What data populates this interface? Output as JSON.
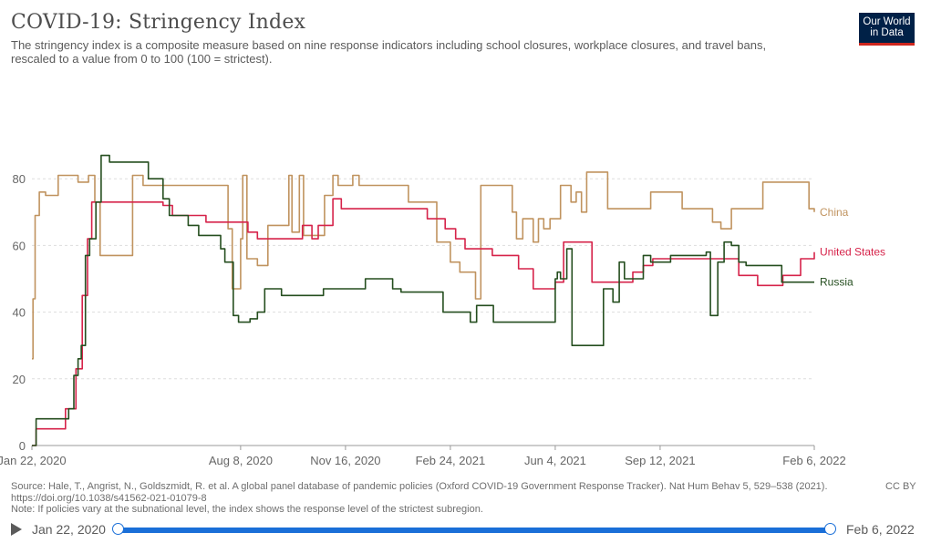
{
  "header": {
    "title": "COVID-19: Stringency Index",
    "subtitle": "The stringency index is a composite measure based on nine response indicators including school closures, workplace closures, and travel bans, rescaled to a value from 0 to 100 (100 = strictest).",
    "logo_line1": "Our World",
    "logo_line2": "in Data"
  },
  "footer": {
    "source": "Source: Hale, T., Angrist, N., Goldszmidt, R. et al. A global panel database of pandemic policies (Oxford COVID-19 Government Response Tracker). Nat Hum Behav 5, 529–538 (2021).",
    "doi": "https://doi.org/10.1038/s41562-021-01079-8",
    "note": "Note: If policies vary at the subnational level, the index shows the response level of the strictest subregion.",
    "license": "CC BY"
  },
  "timeline": {
    "start_label": "Jan 22, 2020",
    "end_label": "Feb 6, 2022"
  },
  "colors": {
    "china": "#c0935f",
    "united_states": "#d6234a",
    "russia": "#254e1f",
    "grid": "#dddddd",
    "axis_text": "#666666"
  },
  "chart_data": {
    "type": "line",
    "ylim": [
      0,
      100
    ],
    "yticks": [
      0,
      20,
      40,
      60,
      80
    ],
    "xlim": [
      "2020-01-22",
      "2022-02-06"
    ],
    "xticks": [
      {
        "date": "2020-01-22",
        "label": "Jan 22, 2020"
      },
      {
        "date": "2020-08-08",
        "label": "Aug 8, 2020"
      },
      {
        "date": "2020-11-16",
        "label": "Nov 16, 2020"
      },
      {
        "date": "2021-02-24",
        "label": "Feb 24, 2021"
      },
      {
        "date": "2021-06-04",
        "label": "Jun 4, 2021"
      },
      {
        "date": "2021-09-12",
        "label": "Sep 12, 2021"
      },
      {
        "date": "2022-02-06",
        "label": "Feb 6, 2022"
      }
    ],
    "series": [
      {
        "name": "China",
        "color": "#c0935f",
        "points": [
          [
            "2020-01-22",
            26
          ],
          [
            "2020-01-23",
            44
          ],
          [
            "2020-01-25",
            69
          ],
          [
            "2020-01-29",
            76
          ],
          [
            "2020-02-04",
            75
          ],
          [
            "2020-02-16",
            81
          ],
          [
            "2020-03-06",
            79
          ],
          [
            "2020-03-16",
            81
          ],
          [
            "2020-03-22",
            73
          ],
          [
            "2020-03-27",
            57
          ],
          [
            "2020-04-27",
            81
          ],
          [
            "2020-05-07",
            78
          ],
          [
            "2020-07-27",
            65
          ],
          [
            "2020-07-31",
            47
          ],
          [
            "2020-08-08",
            62
          ],
          [
            "2020-08-10",
            81
          ],
          [
            "2020-08-14",
            56
          ],
          [
            "2020-08-24",
            54
          ],
          [
            "2020-09-03",
            66
          ],
          [
            "2020-09-23",
            81
          ],
          [
            "2020-09-26",
            64
          ],
          [
            "2020-10-03",
            81
          ],
          [
            "2020-10-07",
            63
          ],
          [
            "2020-10-27",
            75
          ],
          [
            "2020-11-04",
            81
          ],
          [
            "2020-11-09",
            78
          ],
          [
            "2020-11-23",
            81
          ],
          [
            "2020-11-29",
            78
          ],
          [
            "2021-01-15",
            73
          ],
          [
            "2021-01-21",
            73
          ],
          [
            "2021-02-11",
            61
          ],
          [
            "2021-02-24",
            55
          ],
          [
            "2021-03-05",
            52
          ],
          [
            "2021-03-20",
            44
          ],
          [
            "2021-03-25",
            78
          ],
          [
            "2021-04-24",
            70
          ],
          [
            "2021-04-28",
            62
          ],
          [
            "2021-05-04",
            68
          ],
          [
            "2021-05-14",
            61
          ],
          [
            "2021-05-19",
            68
          ],
          [
            "2021-05-24",
            65
          ],
          [
            "2021-05-30",
            68
          ],
          [
            "2021-06-09",
            78
          ],
          [
            "2021-06-19",
            73
          ],
          [
            "2021-06-24",
            76
          ],
          [
            "2021-06-29",
            70
          ],
          [
            "2021-07-04",
            82
          ],
          [
            "2021-07-24",
            71
          ],
          [
            "2021-09-03",
            76
          ],
          [
            "2021-10-03",
            71
          ],
          [
            "2021-11-01",
            67
          ],
          [
            "2021-11-09",
            65
          ],
          [
            "2021-11-19",
            71
          ],
          [
            "2021-12-19",
            79
          ],
          [
            "2022-02-01",
            71
          ],
          [
            "2022-02-06",
            70
          ]
        ]
      },
      {
        "name": "United States",
        "color": "#d6234a",
        "points": [
          [
            "2020-01-22",
            0
          ],
          [
            "2020-01-26",
            5
          ],
          [
            "2020-02-23",
            11
          ],
          [
            "2020-03-04",
            23
          ],
          [
            "2020-03-10",
            45
          ],
          [
            "2020-03-15",
            62
          ],
          [
            "2020-03-19",
            73
          ],
          [
            "2020-05-26",
            72
          ],
          [
            "2020-06-04",
            69
          ],
          [
            "2020-07-06",
            67
          ],
          [
            "2020-08-15",
            64
          ],
          [
            "2020-08-24",
            62
          ],
          [
            "2020-10-06",
            66
          ],
          [
            "2020-10-15",
            62
          ],
          [
            "2020-10-21",
            66
          ],
          [
            "2020-11-04",
            74
          ],
          [
            "2020-11-12",
            71
          ],
          [
            "2020-12-31",
            71
          ],
          [
            "2021-01-29",
            71
          ],
          [
            "2021-02-02",
            68
          ],
          [
            "2021-02-19",
            65
          ],
          [
            "2021-03-01",
            62
          ],
          [
            "2021-03-10",
            59
          ],
          [
            "2021-04-05",
            57
          ],
          [
            "2021-04-30",
            53
          ],
          [
            "2021-05-14",
            47
          ],
          [
            "2021-06-04",
            49
          ],
          [
            "2021-06-12",
            61
          ],
          [
            "2021-07-09",
            49
          ],
          [
            "2021-08-17",
            52
          ],
          [
            "2021-08-27",
            54
          ],
          [
            "2021-09-05",
            56
          ],
          [
            "2021-11-26",
            51
          ],
          [
            "2021-12-10",
            51
          ],
          [
            "2021-12-14",
            48
          ],
          [
            "2022-01-07",
            51
          ],
          [
            "2022-01-17",
            51
          ],
          [
            "2022-01-24",
            56
          ],
          [
            "2022-02-04",
            56
          ],
          [
            "2022-02-06",
            58
          ]
        ]
      },
      {
        "name": "Russia",
        "color": "#254e1f",
        "points": [
          [
            "2020-01-22",
            0
          ],
          [
            "2020-01-26",
            8
          ],
          [
            "2020-02-26",
            11
          ],
          [
            "2020-03-02",
            21
          ],
          [
            "2020-03-06",
            26
          ],
          [
            "2020-03-09",
            30
          ],
          [
            "2020-03-13",
            57
          ],
          [
            "2020-03-17",
            62
          ],
          [
            "2020-03-23",
            73
          ],
          [
            "2020-03-28",
            87
          ],
          [
            "2020-04-05",
            85
          ],
          [
            "2020-05-12",
            80
          ],
          [
            "2020-05-26",
            74
          ],
          [
            "2020-06-01",
            69
          ],
          [
            "2020-06-19",
            66
          ],
          [
            "2020-06-29",
            63
          ],
          [
            "2020-07-20",
            59
          ],
          [
            "2020-07-24",
            55
          ],
          [
            "2020-08-01",
            39
          ],
          [
            "2020-08-06",
            37
          ],
          [
            "2020-08-17",
            38
          ],
          [
            "2020-08-24",
            40
          ],
          [
            "2020-08-31",
            47
          ],
          [
            "2020-09-16",
            45
          ],
          [
            "2020-10-10",
            45
          ],
          [
            "2020-10-26",
            47
          ],
          [
            "2020-11-06",
            47
          ],
          [
            "2020-12-05",
            50
          ],
          [
            "2020-12-31",
            47
          ],
          [
            "2021-01-08",
            46
          ],
          [
            "2021-02-04",
            46
          ],
          [
            "2021-02-17",
            40
          ],
          [
            "2021-03-15",
            37
          ],
          [
            "2021-03-21",
            42
          ],
          [
            "2021-04-06",
            37
          ],
          [
            "2021-05-23",
            37
          ],
          [
            "2021-06-04",
            50
          ],
          [
            "2021-06-06",
            52
          ],
          [
            "2021-06-09",
            50
          ],
          [
            "2021-06-15",
            59
          ],
          [
            "2021-06-20",
            30
          ],
          [
            "2021-07-16",
            30
          ],
          [
            "2021-07-20",
            47
          ],
          [
            "2021-07-29",
            43
          ],
          [
            "2021-08-04",
            55
          ],
          [
            "2021-08-09",
            50
          ],
          [
            "2021-08-27",
            57
          ],
          [
            "2021-09-03",
            55
          ],
          [
            "2021-09-22",
            57
          ],
          [
            "2021-10-26",
            58
          ],
          [
            "2021-10-30",
            39
          ],
          [
            "2021-11-06",
            55
          ],
          [
            "2021-11-12",
            61
          ],
          [
            "2021-11-19",
            60
          ],
          [
            "2021-11-26",
            55
          ],
          [
            "2021-12-03",
            54
          ],
          [
            "2021-12-31",
            54
          ],
          [
            "2022-01-06",
            49
          ],
          [
            "2022-02-06",
            49
          ]
        ]
      }
    ]
  }
}
